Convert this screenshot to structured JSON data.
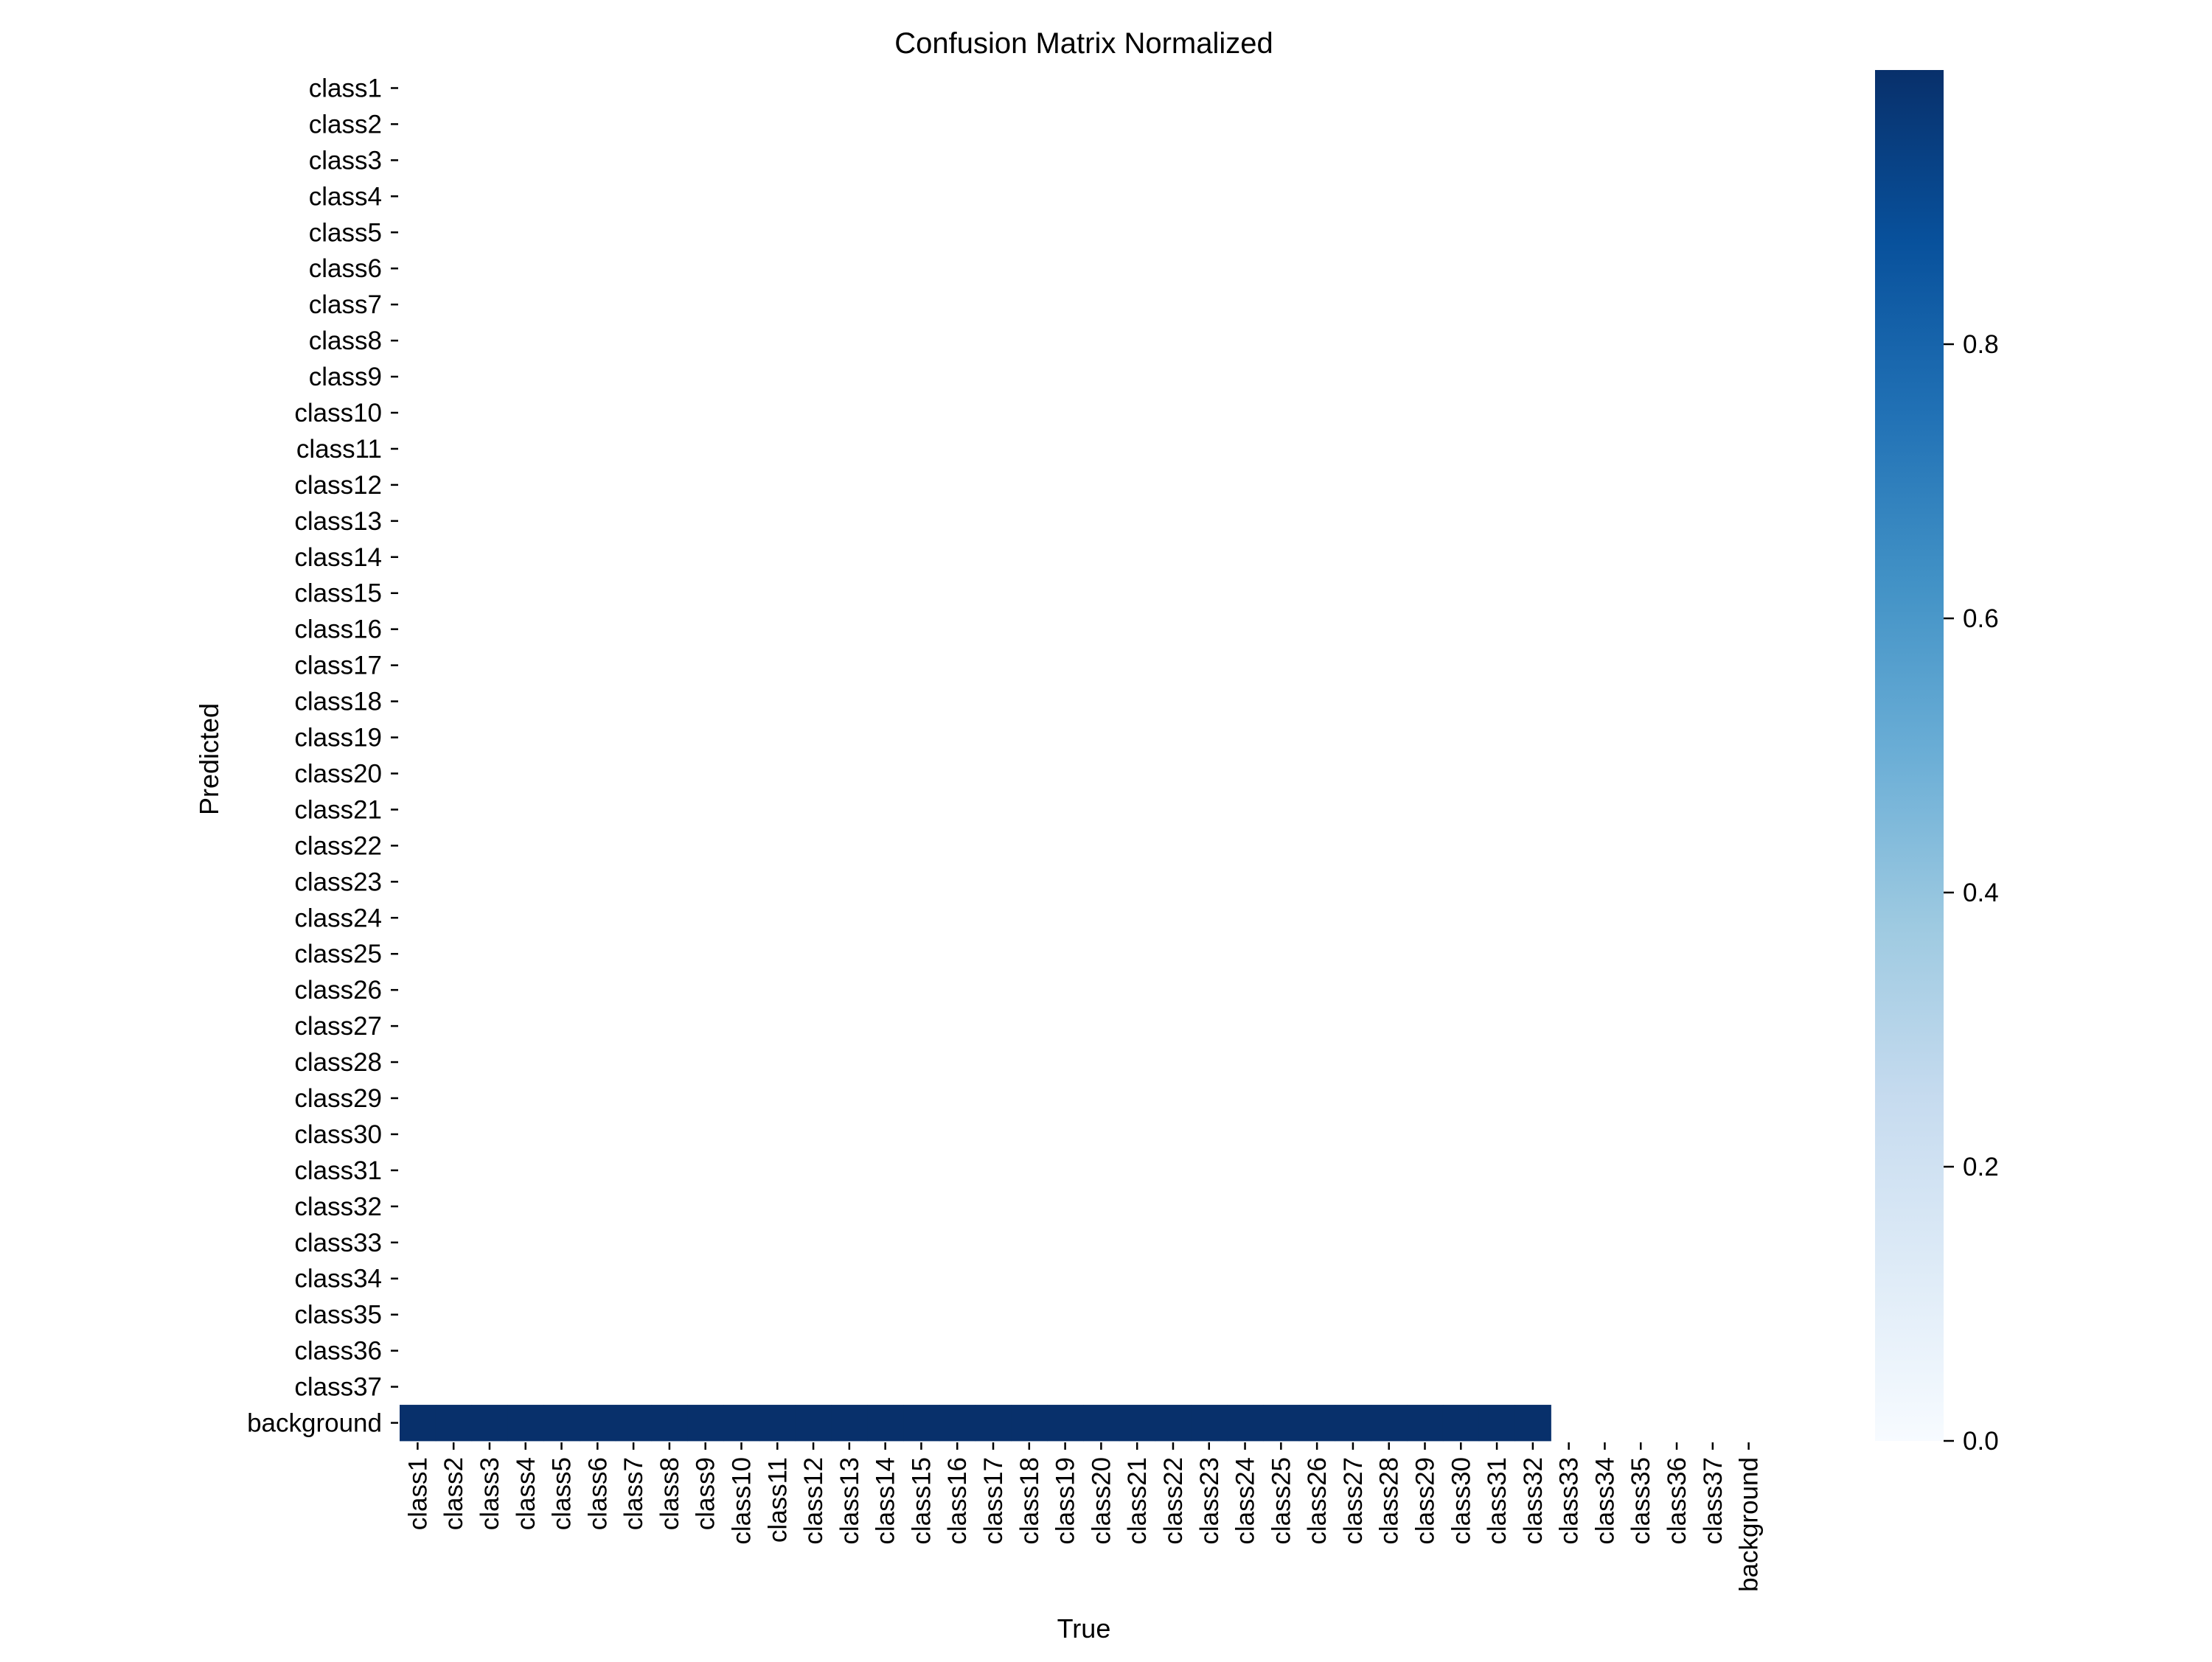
{
  "chart_data": {
    "type": "heatmap",
    "title": "Confusion Matrix Normalized",
    "xlabel": "True",
    "ylabel": "Predicted",
    "x_categories": [
      "class1",
      "class2",
      "class3",
      "class4",
      "class5",
      "class6",
      "class7",
      "class8",
      "class9",
      "class10",
      "class11",
      "class12",
      "class13",
      "class14",
      "class15",
      "class16",
      "class17",
      "class18",
      "class19",
      "class20",
      "class21",
      "class22",
      "class23",
      "class24",
      "class25",
      "class26",
      "class27",
      "class28",
      "class29",
      "class30",
      "class31",
      "class32",
      "class33",
      "class34",
      "class35",
      "class36",
      "class37",
      "background"
    ],
    "y_categories": [
      "class1",
      "class2",
      "class3",
      "class4",
      "class5",
      "class6",
      "class7",
      "class8",
      "class9",
      "class10",
      "class11",
      "class12",
      "class13",
      "class14",
      "class15",
      "class16",
      "class17",
      "class18",
      "class19",
      "class20",
      "class21",
      "class22",
      "class23",
      "class24",
      "class25",
      "class26",
      "class27",
      "class28",
      "class29",
      "class30",
      "class31",
      "class32",
      "class33",
      "class34",
      "class35",
      "class36",
      "class37",
      "background"
    ],
    "cells": [
      {
        "true": "class1",
        "predicted": "background",
        "value": 1.0
      },
      {
        "true": "class2",
        "predicted": "background",
        "value": 1.0
      },
      {
        "true": "class3",
        "predicted": "background",
        "value": 1.0
      },
      {
        "true": "class4",
        "predicted": "background",
        "value": 1.0
      },
      {
        "true": "class5",
        "predicted": "background",
        "value": 1.0
      },
      {
        "true": "class6",
        "predicted": "background",
        "value": 1.0
      },
      {
        "true": "class7",
        "predicted": "background",
        "value": 1.0
      },
      {
        "true": "class8",
        "predicted": "background",
        "value": 1.0
      },
      {
        "true": "class9",
        "predicted": "background",
        "value": 1.0
      },
      {
        "true": "class10",
        "predicted": "background",
        "value": 1.0
      },
      {
        "true": "class11",
        "predicted": "background",
        "value": 1.0
      },
      {
        "true": "class12",
        "predicted": "background",
        "value": 1.0
      },
      {
        "true": "class13",
        "predicted": "background",
        "value": 1.0
      },
      {
        "true": "class14",
        "predicted": "background",
        "value": 1.0
      },
      {
        "true": "class15",
        "predicted": "background",
        "value": 1.0
      },
      {
        "true": "class16",
        "predicted": "background",
        "value": 1.0
      },
      {
        "true": "class17",
        "predicted": "background",
        "value": 1.0
      },
      {
        "true": "class18",
        "predicted": "background",
        "value": 1.0
      },
      {
        "true": "class19",
        "predicted": "background",
        "value": 1.0
      },
      {
        "true": "class20",
        "predicted": "background",
        "value": 1.0
      },
      {
        "true": "class21",
        "predicted": "background",
        "value": 1.0
      },
      {
        "true": "class22",
        "predicted": "background",
        "value": 1.0
      },
      {
        "true": "class23",
        "predicted": "background",
        "value": 1.0
      },
      {
        "true": "class24",
        "predicted": "background",
        "value": 1.0
      },
      {
        "true": "class25",
        "predicted": "background",
        "value": 1.0
      },
      {
        "true": "class26",
        "predicted": "background",
        "value": 1.0
      },
      {
        "true": "class27",
        "predicted": "background",
        "value": 1.0
      },
      {
        "true": "class28",
        "predicted": "background",
        "value": 1.0
      },
      {
        "true": "class29",
        "predicted": "background",
        "value": 1.0
      },
      {
        "true": "class30",
        "predicted": "background",
        "value": 1.0
      },
      {
        "true": "class31",
        "predicted": "background",
        "value": 1.0
      },
      {
        "true": "class32",
        "predicted": "background",
        "value": 1.0
      }
    ],
    "empty_value_display": "blank",
    "colorbar": {
      "colormap": "Blues",
      "range": [
        0.0,
        1.0
      ],
      "ticks": [
        0.0,
        0.2,
        0.4,
        0.6,
        0.8
      ],
      "tick_labels": [
        "0.0",
        "0.2",
        "0.4",
        "0.6",
        "0.8"
      ]
    },
    "colors": {
      "max": "#08306b",
      "min": "#f7fbff"
    },
    "grid": false
  }
}
